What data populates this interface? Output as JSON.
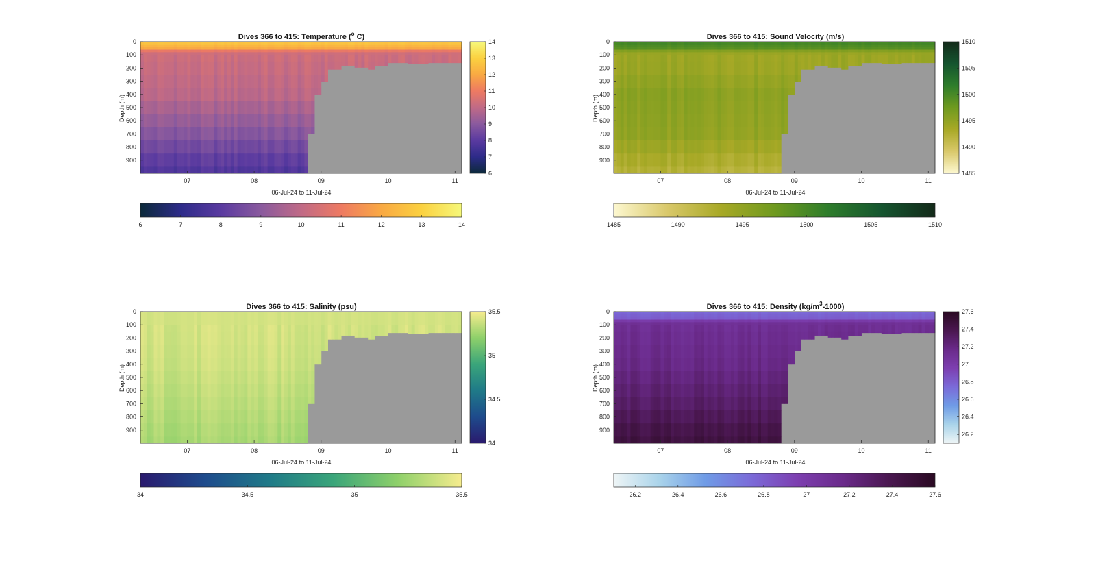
{
  "chart_data": [
    {
      "type": "heatmap",
      "title": "Dives 366 to 415: Temperature (",
      "title_unit": "o",
      "title_unit_style": "superscript",
      "title_suffix": " C)",
      "xlabel": "06-Jul-24 to 11-Jul-24",
      "ylabel": "Depth (m)",
      "x_ticks": [
        "07",
        "08",
        "09",
        "10",
        "11"
      ],
      "x_tick_values": [
        7,
        8,
        9,
        10,
        11
      ],
      "xlim": [
        6.3,
        11.1
      ],
      "y_ticks": [
        "0",
        "100",
        "200",
        "300",
        "400",
        "500",
        "600",
        "700",
        "800",
        "900"
      ],
      "ylim": [
        0,
        1000
      ],
      "y_reversed": true,
      "clim": [
        6,
        14
      ],
      "colorbar_ticks": [
        "6",
        "7",
        "8",
        "9",
        "10",
        "11",
        "12",
        "13",
        "14"
      ],
      "colormap": [
        "#0c2a3a",
        "#2d2b89",
        "#5a3aa0",
        "#8a5a9e",
        "#c06a86",
        "#ee7a62",
        "#f9a943",
        "#fbd140",
        "#f6f87a"
      ],
      "no_data_color": "#9a9a9a",
      "profile": {
        "depths": [
          0,
          50,
          80,
          150,
          400,
          700,
          1000
        ],
        "values": [
          12.8,
          12.0,
          10.3,
          10.2,
          9.9,
          8.9,
          7.7
        ]
      },
      "transition_x": 8.8,
      "max_depth_after": [
        [
          8.8,
          700
        ],
        [
          8.9,
          400
        ],
        [
          9.0,
          300
        ],
        [
          9.1,
          210
        ],
        [
          9.3,
          180
        ],
        [
          9.5,
          195
        ],
        [
          9.7,
          210
        ],
        [
          9.8,
          185
        ],
        [
          10.0,
          160
        ],
        [
          10.3,
          165
        ],
        [
          10.6,
          160
        ],
        [
          11.1,
          160
        ]
      ]
    },
    {
      "type": "heatmap",
      "title": "Dives 366 to 415: Sound Velocity (m/s)",
      "xlabel": "06-Jul-24 to 11-Jul-24",
      "ylabel": "Depth (m)",
      "x_ticks": [
        "07",
        "08",
        "09",
        "10",
        "11"
      ],
      "x_tick_values": [
        7,
        8,
        9,
        10,
        11
      ],
      "xlim": [
        6.3,
        11.1
      ],
      "y_ticks": [
        "0",
        "100",
        "200",
        "300",
        "400",
        "500",
        "600",
        "700",
        "800",
        "900"
      ],
      "ylim": [
        0,
        1000
      ],
      "y_reversed": true,
      "clim": [
        1485,
        1510
      ],
      "colorbar_ticks": [
        "1485",
        "1490",
        "1495",
        "1500",
        "1505",
        "1510"
      ],
      "colormap": [
        "#fdf8d0",
        "#d9c86a",
        "#a8a926",
        "#6f9a1f",
        "#2e7d2b",
        "#15552f",
        "#142a1a"
      ],
      "no_data_color": "#9a9a9a",
      "profile": {
        "depths": [
          0,
          50,
          80,
          150,
          400,
          700,
          1000
        ],
        "values": [
          1500.5,
          1499.0,
          1494.5,
          1494.0,
          1495.5,
          1495.0,
          1492.0
        ]
      },
      "transition_x": 8.8,
      "max_depth_after": [
        [
          8.8,
          700
        ],
        [
          8.9,
          400
        ],
        [
          9.0,
          300
        ],
        [
          9.1,
          210
        ],
        [
          9.3,
          180
        ],
        [
          9.5,
          195
        ],
        [
          9.7,
          210
        ],
        [
          9.8,
          185
        ],
        [
          10.0,
          160
        ],
        [
          10.3,
          165
        ],
        [
          10.6,
          160
        ],
        [
          11.1,
          160
        ]
      ]
    },
    {
      "type": "heatmap",
      "title": "Dives 366 to 415: Salinity (psu)",
      "xlabel": "06-Jul-24 to 11-Jul-24",
      "ylabel": "Depth (m)",
      "x_ticks": [
        "07",
        "08",
        "09",
        "10",
        "11"
      ],
      "x_tick_values": [
        7,
        8,
        9,
        10,
        11
      ],
      "xlim": [
        6.3,
        11.1
      ],
      "y_ticks": [
        "0",
        "100",
        "200",
        "300",
        "400",
        "500",
        "600",
        "700",
        "800",
        "900"
      ],
      "ylim": [
        0,
        1000
      ],
      "y_reversed": true,
      "clim": [
        34,
        35.5
      ],
      "colorbar_ticks": [
        "34",
        "34.5",
        "35",
        "35.5"
      ],
      "colormap": [
        "#2a1a6e",
        "#1e4b8c",
        "#1f7a88",
        "#3aa57a",
        "#8ed06a",
        "#f6ec8e"
      ],
      "no_data_color": "#9a9a9a",
      "profile": {
        "depths": [
          0,
          50,
          150,
          400,
          700,
          1000
        ],
        "values": [
          35.4,
          35.4,
          35.4,
          35.38,
          35.33,
          35.27
        ]
      },
      "transition_x": 8.8,
      "max_depth_after": [
        [
          8.8,
          700
        ],
        [
          8.9,
          400
        ],
        [
          9.0,
          300
        ],
        [
          9.1,
          210
        ],
        [
          9.3,
          180
        ],
        [
          9.5,
          195
        ],
        [
          9.7,
          210
        ],
        [
          9.8,
          185
        ],
        [
          10.0,
          160
        ],
        [
          10.3,
          165
        ],
        [
          10.6,
          160
        ],
        [
          11.1,
          160
        ]
      ]
    },
    {
      "type": "heatmap",
      "title": "Dives 366 to 415: Density (kg/m",
      "title_unit": "3",
      "title_unit_style": "superscript",
      "title_suffix": "-1000)",
      "xlabel": "06-Jul-24 to 11-Jul-24",
      "ylabel": "Depth (m)",
      "x_ticks": [
        "07",
        "08",
        "09",
        "10",
        "11"
      ],
      "x_tick_values": [
        7,
        8,
        9,
        10,
        11
      ],
      "xlim": [
        6.3,
        11.1
      ],
      "y_ticks": [
        "0",
        "100",
        "200",
        "300",
        "400",
        "500",
        "600",
        "700",
        "800",
        "900"
      ],
      "ylim": [
        0,
        1000
      ],
      "y_reversed": true,
      "clim": [
        26.1,
        27.6
      ],
      "colorbar_ticks": [
        "26.2",
        "26.4",
        "26.6",
        "26.8",
        "27",
        "27.2",
        "27.4",
        "27.6"
      ],
      "colormap": [
        "#eef5f6",
        "#a9d3ea",
        "#6f9be6",
        "#7b6ad8",
        "#7d3fb0",
        "#6a2a8a",
        "#4a1750",
        "#2a0a22"
      ],
      "no_data_color": "#9a9a9a",
      "profile": {
        "depths": [
          0,
          50,
          80,
          150,
          400,
          700,
          1000
        ],
        "values": [
          26.75,
          26.8,
          27.1,
          27.13,
          27.18,
          27.3,
          27.47
        ]
      },
      "transition_x": 8.8,
      "max_depth_after": [
        [
          8.8,
          700
        ],
        [
          8.9,
          400
        ],
        [
          9.0,
          300
        ],
        [
          9.1,
          210
        ],
        [
          9.3,
          180
        ],
        [
          9.5,
          195
        ],
        [
          9.7,
          210
        ],
        [
          9.8,
          185
        ],
        [
          10.0,
          160
        ],
        [
          10.3,
          165
        ],
        [
          10.6,
          160
        ],
        [
          11.1,
          160
        ]
      ]
    }
  ]
}
